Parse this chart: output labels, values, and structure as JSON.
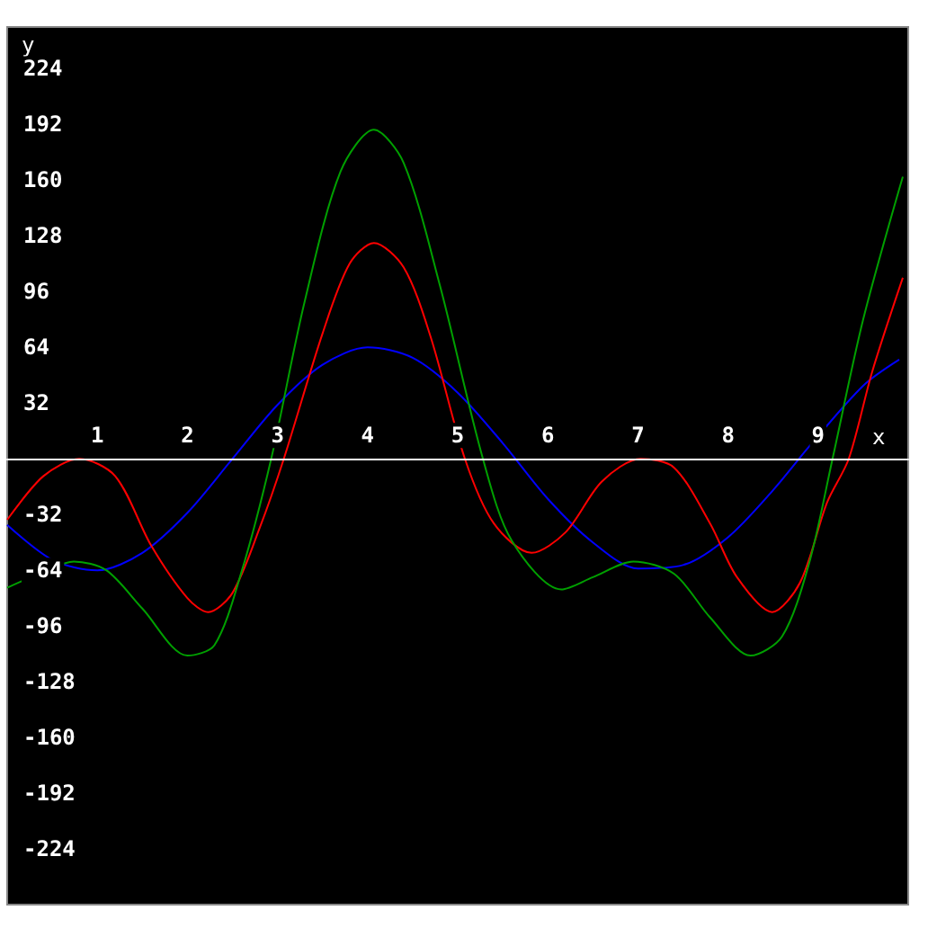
{
  "chart_data": {
    "type": "line",
    "xlabel": "x",
    "ylabel": "y",
    "xlim": [
      0,
      10
    ],
    "ylim": [
      -256,
      248
    ],
    "xticks": [
      1,
      2,
      3,
      4,
      5,
      6,
      7,
      8,
      9
    ],
    "yticks": [
      -224,
      -192,
      -160,
      -128,
      -96,
      -64,
      -32,
      32,
      64,
      96,
      128,
      160,
      192,
      224
    ],
    "grid": false,
    "marker": "none",
    "line_style": "solid",
    "series": [
      {
        "color": "#0000ff",
        "x": [
          0,
          0.5,
          1,
          1.5,
          2,
          2.5,
          3,
          3.5,
          4,
          4.5,
          5,
          5.5,
          6,
          6.5,
          7,
          7.5,
          8,
          8.5,
          8.9,
          9.5,
          9.9
        ],
        "values": [
          -38,
          -58,
          -64,
          -54,
          -31,
          0,
          31,
          54,
          64,
          58,
          38,
          9,
          -23,
          -48,
          -63,
          -61,
          -45,
          -18,
          7,
          42,
          57
        ]
      },
      {
        "color": "#ff0000",
        "x": [
          0,
          0.4,
          0.8,
          1.2,
          1.6,
          2,
          2.23,
          2.5,
          2.8,
          3.07,
          3.5,
          3.8,
          4.07,
          4.4,
          4.7,
          5.08,
          5.4,
          5.82,
          6.2,
          6.6,
          7.03,
          7.4,
          7.8,
          8.1,
          8.49,
          8.8,
          9.1,
          9.34,
          9.6,
          9.94
        ],
        "values": [
          -35,
          -10,
          0,
          -10,
          -50,
          -80,
          -88,
          -77,
          -40,
          0,
          72,
          112,
          124,
          110,
          70,
          0,
          -37,
          -54,
          -42,
          -13,
          0,
          -5,
          -37,
          -68,
          -88,
          -71,
          -25,
          0,
          50,
          104
        ]
      },
      {
        "color": "#00a000",
        "x": [
          0,
          0.4,
          0.74,
          1.1,
          1.5,
          2,
          2.3,
          2.6,
          2.93,
          3.3,
          3.7,
          4.07,
          4.4,
          4.8,
          5.28,
          5.6,
          6.15,
          6.5,
          6.95,
          7.4,
          7.8,
          8.25,
          8.6,
          8.9,
          9.16,
          9.5,
          9.94
        ],
        "values": [
          -74,
          -65,
          -59,
          -64,
          -86,
          -113,
          -107,
          -65,
          0,
          90,
          165,
          189,
          170,
          100,
          0,
          -47,
          -75,
          -68,
          -59,
          -66,
          -91,
          -113,
          -102,
          -60,
          0,
          80,
          162
        ]
      }
    ]
  }
}
